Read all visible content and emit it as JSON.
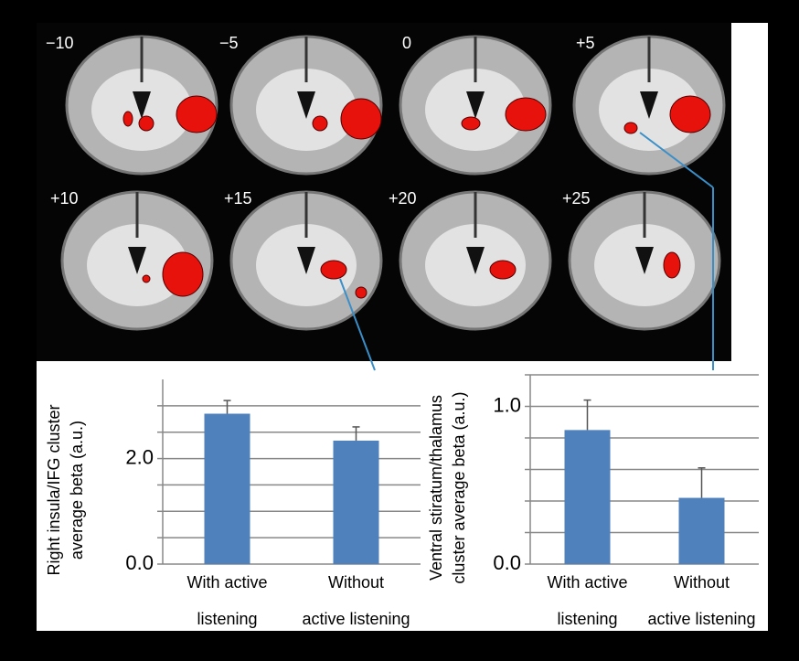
{
  "brain_slices": {
    "labels": [
      "−10",
      "−5",
      "0",
      "+5",
      "+10",
      "+15",
      "+20",
      "+25"
    ]
  },
  "chart_data": [
    {
      "type": "bar",
      "ylabel": [
        "Right insula/IFG cluster",
        "average beta (a.u.)"
      ],
      "categories": [
        [
          "With active",
          "listening"
        ],
        [
          "Without",
          "active listening"
        ]
      ],
      "values": [
        2.85,
        2.34
      ],
      "errors": [
        0.25,
        0.26
      ],
      "color": "#4f81bd",
      "ylim": [
        0,
        3.5
      ],
      "yticks": [
        {
          "value": 0,
          "label": "0.0"
        },
        {
          "value": 0.5,
          "label": null
        },
        {
          "value": 1,
          "label": null
        },
        {
          "value": 1.5,
          "label": null
        },
        {
          "value": 2,
          "label": "2.0"
        },
        {
          "value": 2.5,
          "label": null
        },
        {
          "value": 3,
          "label": null
        }
      ],
      "grid": true
    },
    {
      "type": "bar",
      "ylabel": [
        "Ventral stiratum/thalamus",
        "cluster average beta (a.u.)"
      ],
      "categories": [
        [
          "With active",
          "listening"
        ],
        [
          "Without",
          "active listening"
        ]
      ],
      "values": [
        0.85,
        0.42
      ],
      "errors": [
        0.19,
        0.19
      ],
      "color": "#4f81bd",
      "ylim": [
        0,
        1.2
      ],
      "yticks": [
        {
          "value": 0,
          "label": "0.0"
        },
        {
          "value": 0.2,
          "label": null
        },
        {
          "value": 0.4,
          "label": null
        },
        {
          "value": 0.6,
          "label": null
        },
        {
          "value": 0.8,
          "label": null
        },
        {
          "value": 1,
          "label": "1.0"
        },
        {
          "value": 1.2,
          "label": null
        }
      ],
      "grid": true
    }
  ]
}
